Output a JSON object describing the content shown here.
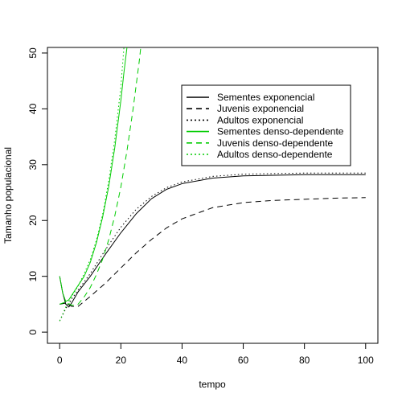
{
  "chart_data": {
    "type": "line",
    "xlabel": "tempo",
    "ylabel": "Tamanho populacional",
    "xlim": [
      -4,
      104
    ],
    "ylim": [
      -2,
      51
    ],
    "xticks": [
      0,
      20,
      40,
      60,
      80,
      100
    ],
    "yticks": [
      0,
      10,
      20,
      30,
      40,
      50
    ],
    "grid": false,
    "legend_position": "top-right",
    "series": [
      {
        "name": "Sementes exponencial",
        "color": "#000000",
        "dash": "solid",
        "points": [
          [
            0,
            10
          ],
          [
            1,
            7
          ],
          [
            2,
            5
          ],
          [
            3,
            4.5
          ],
          [
            4,
            5.3
          ],
          [
            6,
            7.2
          ],
          [
            10,
            10
          ],
          [
            15,
            14
          ],
          [
            20,
            17.8
          ],
          [
            25,
            21.2
          ],
          [
            30,
            23.9
          ],
          [
            35,
            25.6
          ],
          [
            40,
            26.6
          ],
          [
            50,
            27.6
          ],
          [
            60,
            28
          ],
          [
            70,
            28.1
          ],
          [
            80,
            28.2
          ],
          [
            90,
            28.2
          ],
          [
            100,
            28.2
          ]
        ]
      },
      {
        "name": "Juvenis exponencial",
        "color": "#000000",
        "dash": "dashed",
        "points": [
          [
            0,
            5
          ],
          [
            2,
            5.2
          ],
          [
            4,
            4.6
          ],
          [
            6,
            4.6
          ],
          [
            10,
            6.4
          ],
          [
            15,
            8.8
          ],
          [
            20,
            11.5
          ],
          [
            25,
            14.2
          ],
          [
            30,
            16.6
          ],
          [
            35,
            18.7
          ],
          [
            40,
            20.3
          ],
          [
            50,
            22.3
          ],
          [
            60,
            23.2
          ],
          [
            70,
            23.6
          ],
          [
            80,
            23.8
          ],
          [
            90,
            24
          ],
          [
            100,
            24.1
          ]
        ]
      },
      {
        "name": "Adultos exponencial",
        "color": "#000000",
        "dash": "dotted",
        "points": [
          [
            0,
            2
          ],
          [
            2,
            4.2
          ],
          [
            4,
            6
          ],
          [
            6,
            7.5
          ],
          [
            10,
            10.5
          ],
          [
            15,
            14.8
          ],
          [
            20,
            18.8
          ],
          [
            25,
            22
          ],
          [
            30,
            24.3
          ],
          [
            35,
            25.9
          ],
          [
            40,
            26.9
          ],
          [
            50,
            27.9
          ],
          [
            60,
            28.3
          ],
          [
            70,
            28.4
          ],
          [
            80,
            28.5
          ],
          [
            90,
            28.5
          ],
          [
            100,
            28.5
          ]
        ]
      },
      {
        "name": "Sementes denso-dependente",
        "color": "#00cc00",
        "dash": "solid",
        "points": [
          [
            0,
            10
          ],
          [
            1,
            7
          ],
          [
            2,
            5.5
          ],
          [
            3,
            5.8
          ],
          [
            5,
            7.5
          ],
          [
            8,
            10
          ],
          [
            10,
            12.5
          ],
          [
            12,
            16
          ],
          [
            14,
            20.5
          ],
          [
            16,
            26
          ],
          [
            18,
            33
          ],
          [
            20,
            41.5
          ],
          [
            21,
            46.5
          ],
          [
            22,
            51
          ]
        ]
      },
      {
        "name": "Juvenis denso-dependente",
        "color": "#00cc00",
        "dash": "dashed",
        "points": [
          [
            0,
            5
          ],
          [
            2,
            5.4
          ],
          [
            4,
            4.8
          ],
          [
            6,
            5
          ],
          [
            8,
            6.3
          ],
          [
            10,
            8
          ],
          [
            12,
            10.3
          ],
          [
            14,
            13
          ],
          [
            16,
            16.5
          ],
          [
            18,
            20.8
          ],
          [
            20,
            26
          ],
          [
            22,
            32.5
          ],
          [
            24,
            40
          ],
          [
            26,
            48.5
          ],
          [
            26.5,
            51
          ]
        ]
      },
      {
        "name": "Adultos denso-dependente",
        "color": "#00cc00",
        "dash": "dotted",
        "points": [
          [
            0,
            2
          ],
          [
            2,
            4.5
          ],
          [
            4,
            6.5
          ],
          [
            6,
            8.2
          ],
          [
            8,
            10.5
          ],
          [
            10,
            13
          ],
          [
            12,
            16.5
          ],
          [
            14,
            21
          ],
          [
            16,
            27
          ],
          [
            18,
            34.5
          ],
          [
            20,
            44
          ],
          [
            21,
            51
          ]
        ]
      }
    ]
  }
}
